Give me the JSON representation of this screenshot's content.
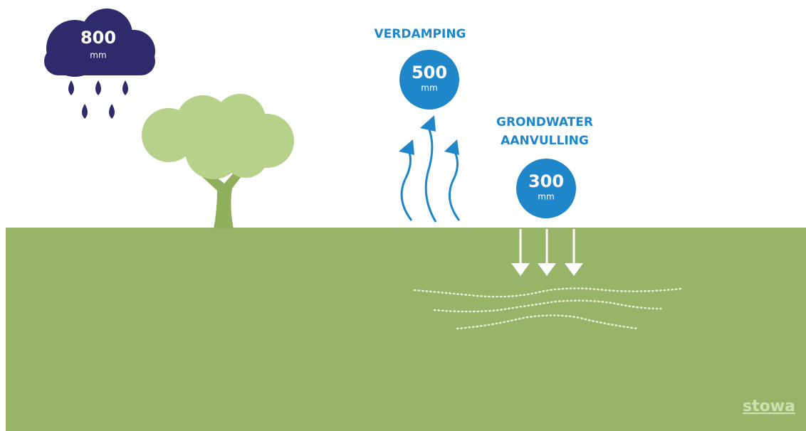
{
  "precipitation": {
    "value": 800,
    "unit": "mm"
  },
  "evaporation": {
    "title": "VERDAMPING",
    "value": 500,
    "unit": "mm"
  },
  "groundwater_recharge": {
    "title_lines": [
      "GRONDWATER",
      "AANVULLING"
    ],
    "value": 300,
    "unit": "mm"
  },
  "logo": "stowa"
}
